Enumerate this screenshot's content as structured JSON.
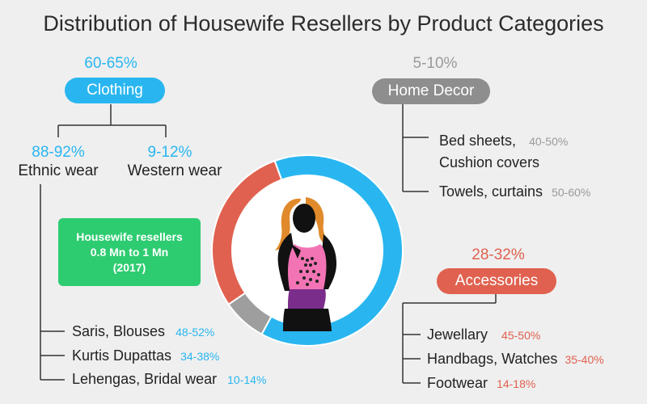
{
  "chart_data": {
    "type": "pie",
    "title": "Distribution of Housewife Resellers by Product Categories",
    "slices": [
      {
        "name": "Clothing",
        "value": 63.5,
        "range": "60-65%",
        "color": "#29b6f0"
      },
      {
        "name": "Home Decor",
        "value": 7.5,
        "range": "5-10%",
        "color": "#9e9e9e"
      },
      {
        "name": "Accessories",
        "value": 29,
        "range": "28-32%",
        "color": "#e0614f"
      }
    ],
    "center_box": {
      "line1": "Housewife resellers",
      "line2": "0.8 Mn to 1 Mn",
      "line3": "(2017)",
      "color": "#2ecc71"
    },
    "breakdown": {
      "clothing": {
        "ethnic": {
          "label": "Ethnic wear",
          "pct": "88-92%"
        },
        "western": {
          "label": "Western wear",
          "pct": "9-12%"
        },
        "items": [
          {
            "label": "Saris, Blouses",
            "pct": "48-52%"
          },
          {
            "label": "Kurtis Dupattas",
            "pct": "34-38%"
          },
          {
            "label": "Lehengas, Bridal wear",
            "pct": "10-14%"
          }
        ]
      },
      "home_decor": {
        "items": [
          {
            "label_line1": "Bed sheets,",
            "label_line2": "Cushion covers",
            "pct": "40-50%"
          },
          {
            "label_line1": "Towels, curtains",
            "label_line2": "",
            "pct": "50-60%"
          }
        ]
      },
      "accessories": {
        "items": [
          {
            "label": "Jewellary",
            "pct": "45-50%"
          },
          {
            "label": "Handbags, Watches",
            "pct": "35-40%"
          },
          {
            "label": "Footwear",
            "pct": "14-18%"
          }
        ]
      }
    }
  }
}
